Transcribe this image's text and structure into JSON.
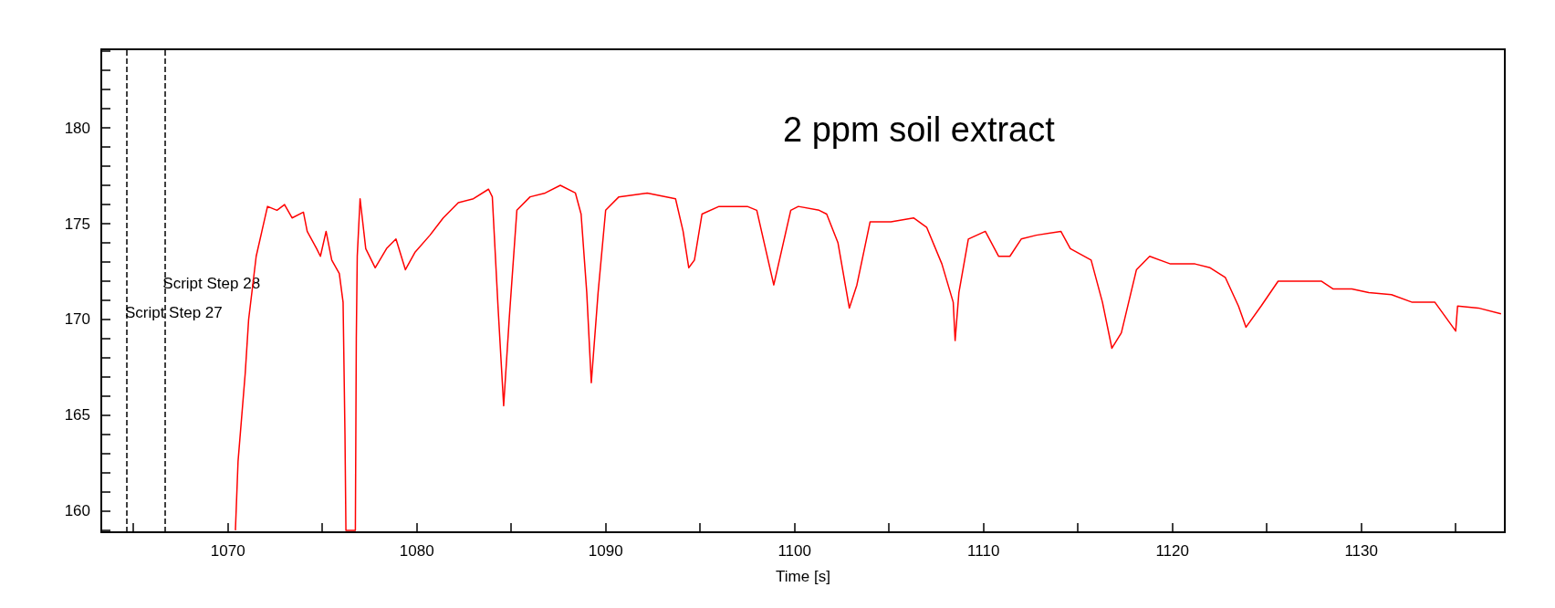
{
  "chart_data": {
    "type": "line",
    "title": "2 ppm soil extract",
    "xlabel": "Time [s]",
    "xlim": [
      1063.3,
      1137.6
    ],
    "xticks": [
      {
        "value": 1065,
        "label": null
      },
      1070,
      {
        "value": 1075,
        "label": null
      },
      1080,
      {
        "value": 1085,
        "label": null
      },
      1090,
      {
        "value": 1095,
        "label": null
      },
      1100,
      {
        "value": 1105,
        "label": null
      },
      1110,
      {
        "value": 1115,
        "label": null
      },
      1120,
      {
        "value": 1125,
        "label": null
      },
      1130,
      {
        "value": 1135,
        "label": null
      }
    ],
    "ylim": [
      158.9,
      184.1
    ],
    "yticks": [
      {
        "value": 159,
        "label": null
      },
      160,
      {
        "value": 161,
        "label": null
      },
      {
        "value": 162,
        "label": null
      },
      {
        "value": 163,
        "label": null
      },
      {
        "value": 164,
        "label": null
      },
      165,
      {
        "value": 166,
        "label": null
      },
      {
        "value": 167,
        "label": null
      },
      {
        "value": 168,
        "label": null
      },
      {
        "value": 169,
        "label": null
      },
      170,
      {
        "value": 171,
        "label": null
      },
      {
        "value": 172,
        "label": null
      },
      {
        "value": 173,
        "label": null
      },
      {
        "value": 174,
        "label": null
      },
      175,
      {
        "value": 176,
        "label": null
      },
      {
        "value": 177,
        "label": null
      },
      {
        "value": 178,
        "label": null
      },
      {
        "value": 179,
        "label": null
      },
      180,
      {
        "value": 181,
        "label": null
      },
      {
        "value": 182,
        "label": null
      },
      {
        "value": 183,
        "label": null
      },
      {
        "value": 184,
        "label": null
      }
    ],
    "ref_lines": [
      {
        "axis": "x",
        "value": 1064.65,
        "label": "Script Step 27",
        "color": "#000000",
        "line_style": "dashed"
      },
      {
        "axis": "x",
        "value": 1066.65,
        "label": "Script Step 28",
        "color": "#000000",
        "line_style": "dashed"
      }
    ],
    "series": [
      {
        "color": "#ff0000",
        "x": [
          1070.4,
          1070.54,
          1070.92,
          1071.1,
          1071.5,
          1071.8,
          1072.1,
          1072.6,
          1073.0,
          1073.4,
          1074.0,
          1074.2,
          1074.7,
          1074.9,
          1075.2,
          1075.5,
          1075.9,
          1076.1,
          1076.2,
          1076.25,
          1076.75,
          1076.8,
          1076.85,
          1077.0,
          1077.3,
          1077.8,
          1078.4,
          1078.9,
          1079.4,
          1079.9,
          1080.7,
          1081.4,
          1082.2,
          1083.0,
          1083.8,
          1084.0,
          1084.3,
          1084.6,
          1084.9,
          1085.3,
          1086.0,
          1086.8,
          1087.6,
          1088.4,
          1088.7,
          1089.0,
          1089.24,
          1089.6,
          1090.0,
          1090.7,
          1092.2,
          1093.7,
          1094.1,
          1094.4,
          1094.7,
          1095.1,
          1096.0,
          1097.5,
          1098.0,
          1098.9,
          1099.8,
          1100.2,
          1101.3,
          1101.7,
          1102.3,
          1102.9,
          1103.3,
          1104.0,
          1105.1,
          1106.3,
          1107.0,
          1107.8,
          1108.4,
          1108.5,
          1108.7,
          1109.2,
          1110.1,
          1110.8,
          1111.4,
          1112.0,
          1112.8,
          1114.1,
          1114.6,
          1115.7,
          1116.3,
          1116.8,
          1117.3,
          1118.1,
          1118.8,
          1119.9,
          1121.2,
          1122.0,
          1122.8,
          1123.5,
          1123.9,
          1124.7,
          1125.6,
          1126.6,
          1127.9,
          1128.5,
          1129.5,
          1130.4,
          1131.6,
          1132.7,
          1133.9,
          1135.0,
          1135.1,
          1136.2,
          1137.4
        ],
        "values": [
          159,
          162.6,
          167.2,
          170.0,
          173.3,
          174.6,
          175.9,
          175.7,
          176.0,
          175.3,
          175.6,
          174.6,
          173.7,
          173.3,
          174.6,
          173.1,
          172.4,
          170.9,
          164.0,
          159,
          159,
          169.0,
          173.3,
          176.3,
          173.7,
          172.7,
          173.7,
          174.2,
          172.6,
          173.5,
          174.4,
          175.3,
          176.1,
          176.3,
          176.8,
          176.4,
          170.7,
          165.5,
          170.1,
          175.7,
          176.4,
          176.6,
          177.0,
          176.6,
          175.5,
          171.4,
          166.7,
          171.4,
          175.7,
          176.4,
          176.6,
          176.3,
          174.6,
          172.7,
          173.1,
          175.5,
          175.9,
          175.9,
          175.7,
          171.8,
          175.7,
          175.9,
          175.7,
          175.5,
          174.0,
          170.6,
          171.8,
          175.1,
          175.1,
          175.3,
          174.8,
          172.9,
          170.9,
          168.9,
          171.4,
          174.2,
          174.6,
          173.3,
          173.3,
          174.2,
          174.4,
          174.6,
          173.7,
          173.1,
          170.9,
          168.5,
          169.3,
          172.6,
          173.3,
          172.9,
          172.9,
          172.7,
          172.2,
          170.7,
          169.6,
          170.7,
          172.0,
          172.0,
          172.0,
          171.6,
          171.6,
          171.4,
          171.3,
          170.9,
          170.9,
          169.4,
          170.7,
          170.6,
          170.3
        ]
      }
    ]
  }
}
